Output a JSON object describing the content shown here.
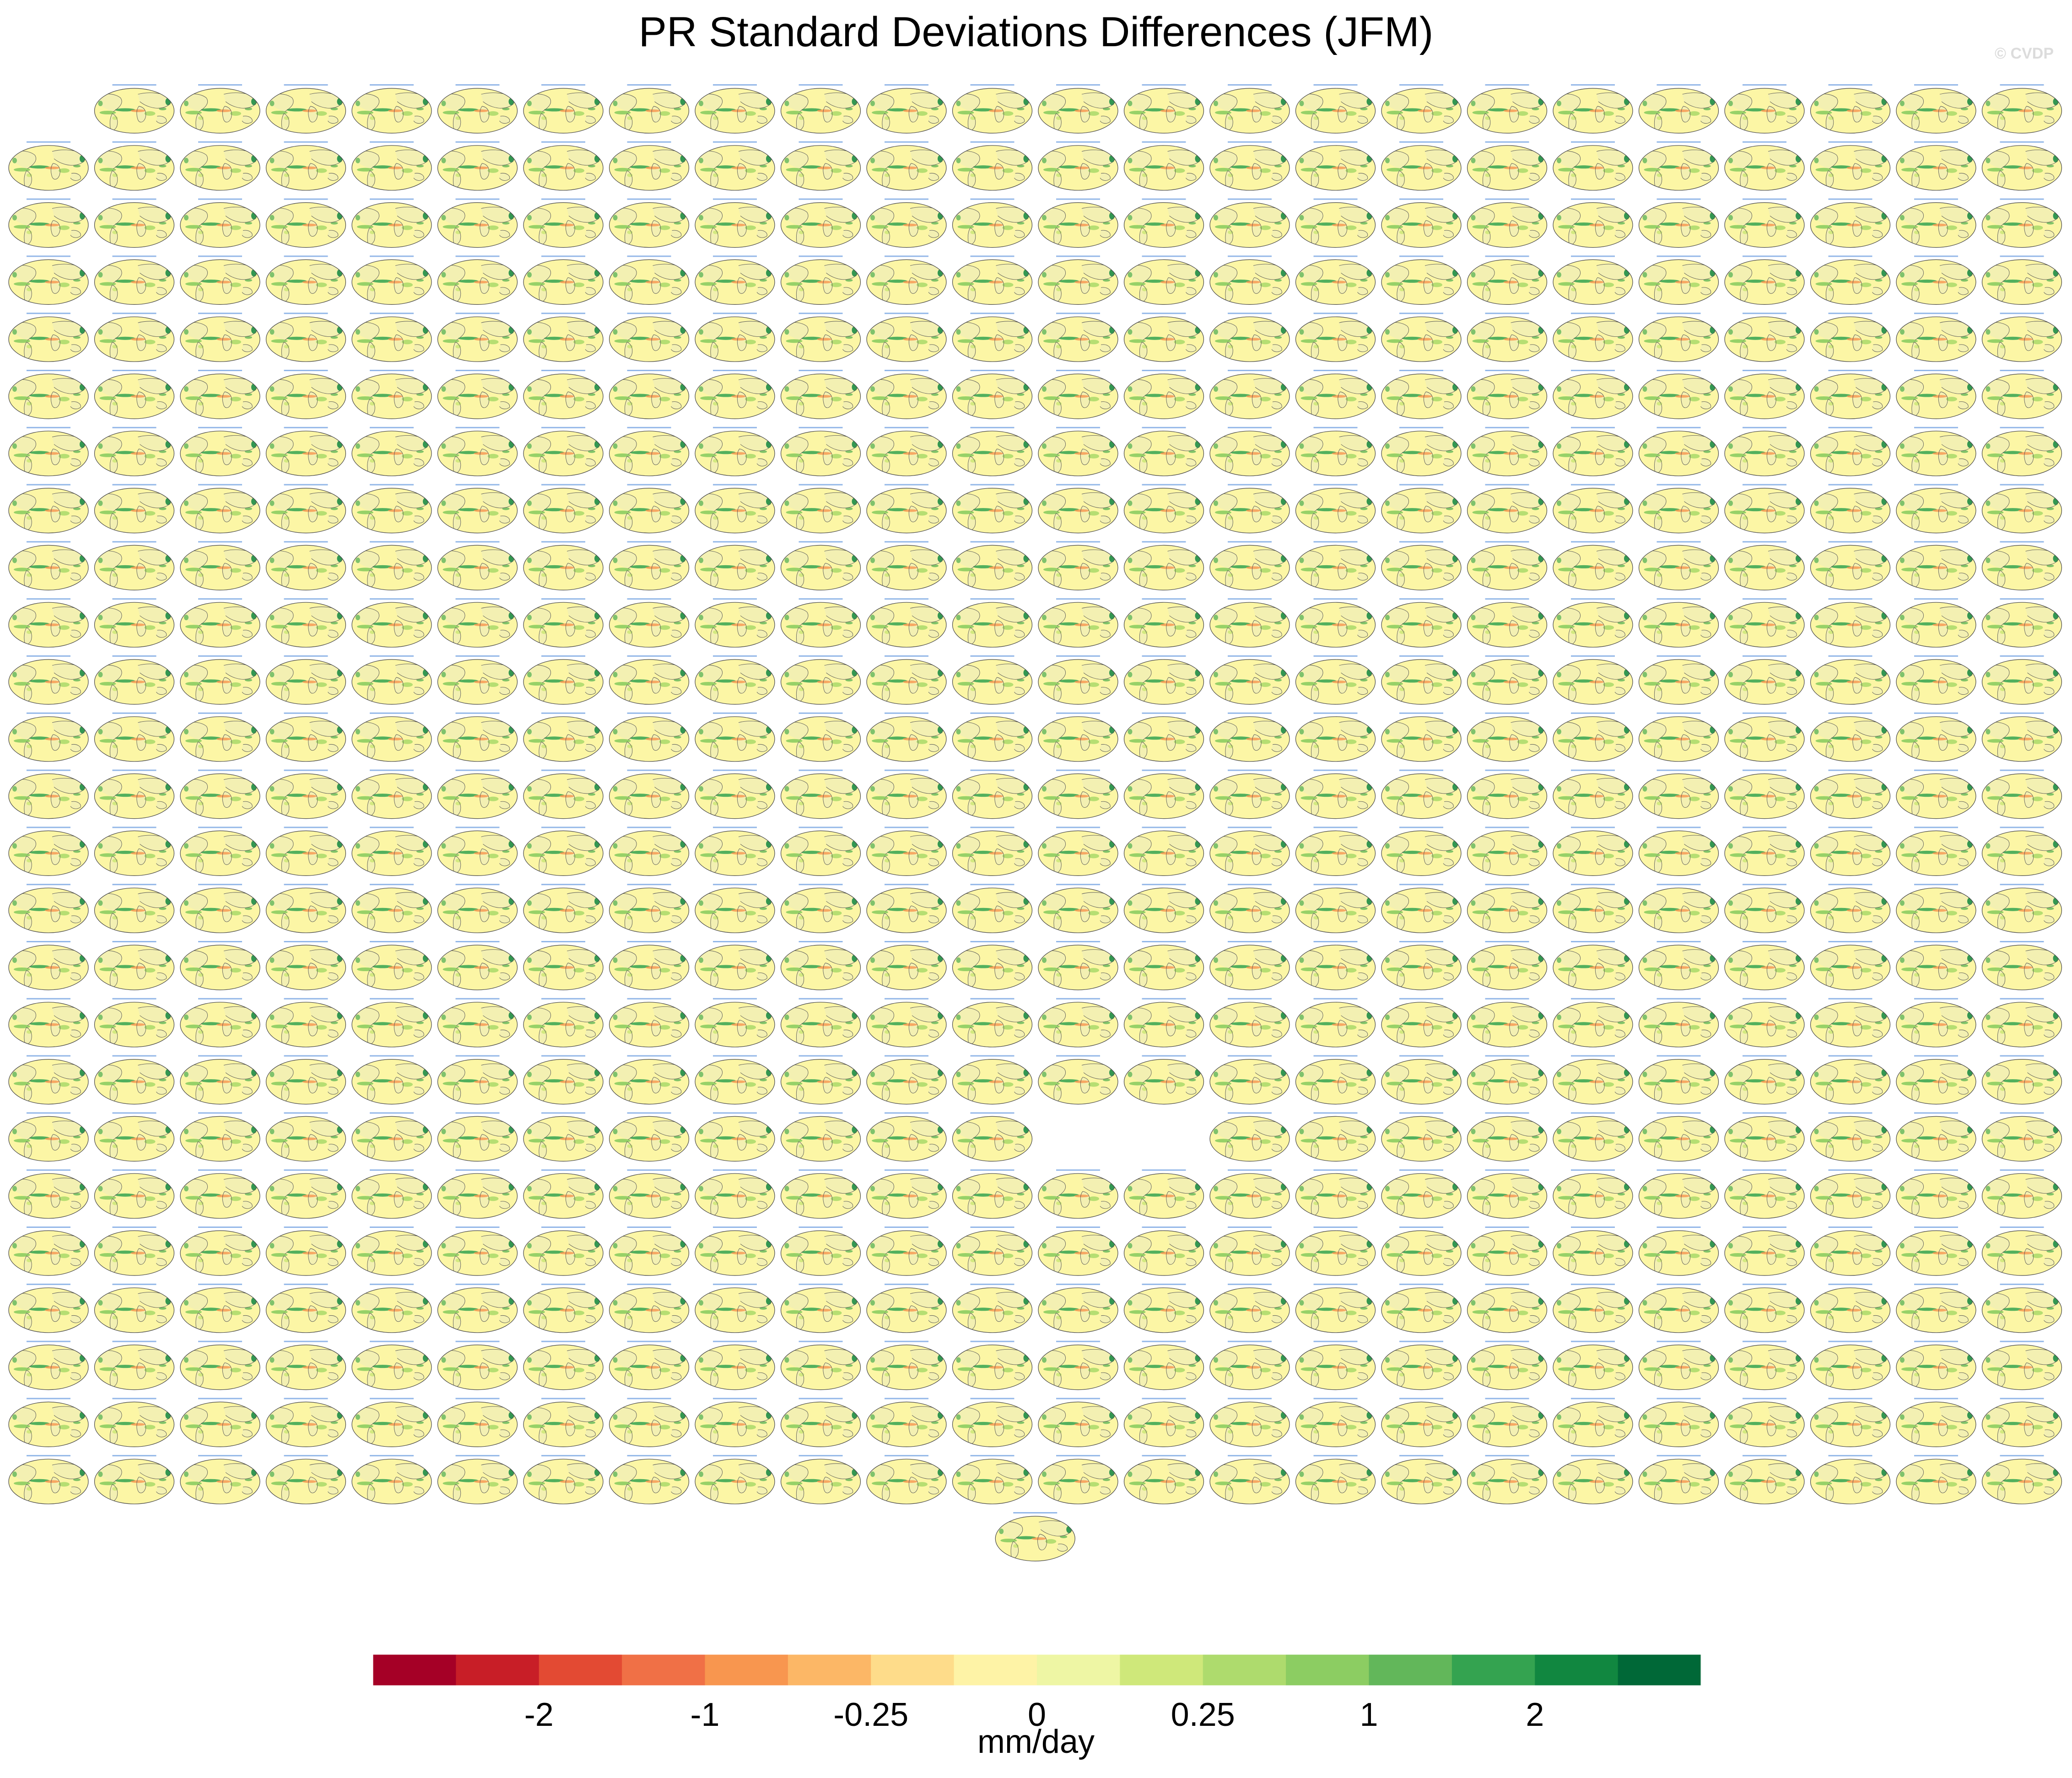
{
  "title": "PR Standard Deviations Differences (JFM)",
  "watermark": "© CVDP",
  "units": "mm/day",
  "colors": {
    "land": "#f3f0b2",
    "ocean": "#fcf6a5",
    "coast": "#555555",
    "panel_title": "#3a7bd5"
  },
  "chart_data": {
    "type": "heatmap",
    "grid": {
      "rows": 26,
      "columns": 24
    },
    "panel_counts": [
      23,
      24,
      24,
      24,
      24,
      24,
      24,
      24,
      24,
      24,
      24,
      24,
      24,
      24,
      24,
      24,
      24,
      24,
      22,
      24,
      24,
      24,
      24,
      24,
      24,
      1
    ],
    "colorbar": {
      "colors": [
        "#a50026",
        "#c81e27",
        "#e34a33",
        "#f07046",
        "#f8964f",
        "#fcb766",
        "#fedc8a",
        "#fef3a6",
        "#eef6a4",
        "#cfe87a",
        "#aedb6d",
        "#8ccd62",
        "#62b75a",
        "#34a350",
        "#118740",
        "#006837"
      ],
      "tick_labels": [
        "-2",
        "-1",
        "-0.25",
        "0",
        "0.25",
        "1",
        "2"
      ],
      "tick_boundaries": [
        2,
        4,
        6,
        8,
        10,
        12,
        14
      ]
    }
  }
}
